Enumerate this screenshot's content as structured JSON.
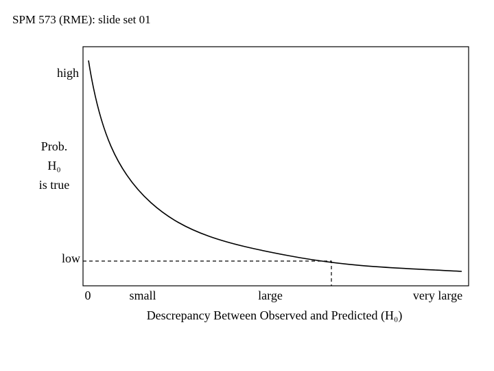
{
  "header": {
    "title": "SPM 573 (RME): slide set 01"
  },
  "figure": {
    "y_labels": {
      "high": "high",
      "low": "low",
      "title": [
        "Prob.",
        "H₀",
        "is true"
      ]
    },
    "x_labels": [
      "0",
      "small",
      "large",
      "very large"
    ],
    "x_title": "Descrepancy Between Observed and Predicted (H₀)"
  }
}
